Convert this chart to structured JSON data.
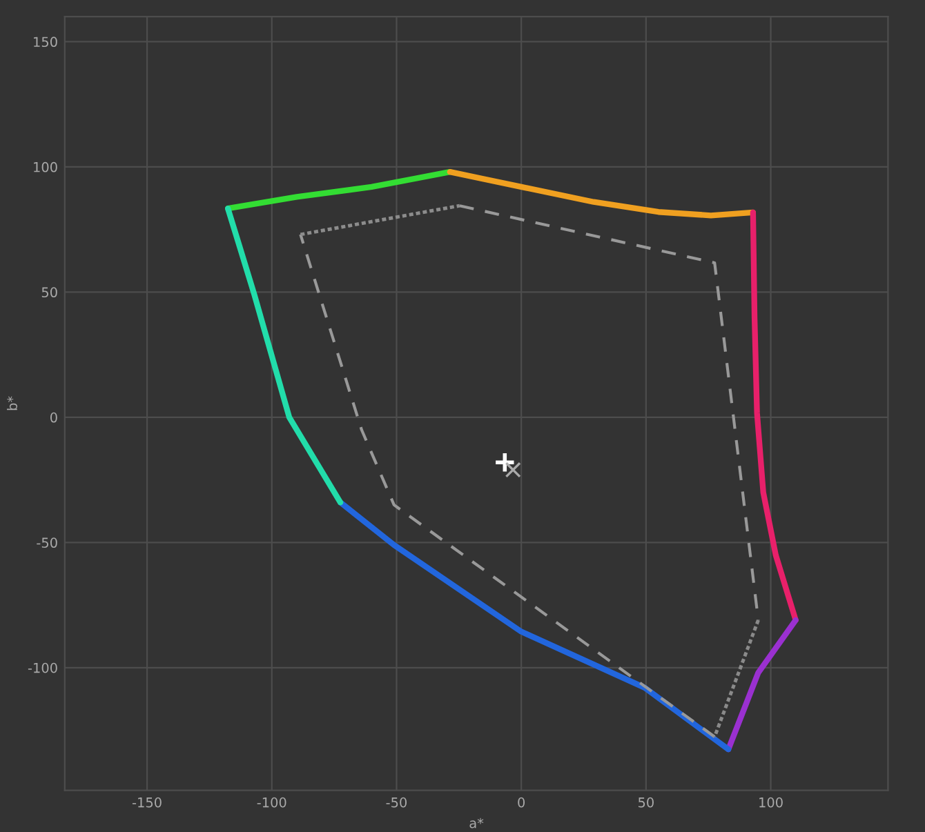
{
  "chart_data": {
    "type": "line",
    "xlabel": "a*",
    "ylabel": "b*",
    "xlim": [
      -183,
      147
    ],
    "ylim": [
      -149,
      160
    ],
    "xticks": [
      -150,
      -100,
      -50,
      0,
      50,
      100
    ],
    "yticks": [
      -100,
      -50,
      0,
      50,
      100,
      150
    ],
    "grid": true,
    "series": [
      {
        "color": "#33dd33",
        "x": [
          -117.6,
          -90,
          -60,
          -28.6
        ],
        "values": [
          83.4,
          88,
          92,
          98
        ],
        "line_style": "solid"
      },
      {
        "color": "#f0a020",
        "x": [
          -28.6,
          0,
          29,
          55,
          76,
          92.9
        ],
        "values": [
          98,
          92,
          86,
          82,
          80.6,
          81.8
        ],
        "line_style": "solid"
      },
      {
        "color": "#e8206a",
        "x": [
          92.9,
          93.5,
          94.5,
          97,
          102,
          110
        ],
        "values": [
          81.8,
          40,
          1.7,
          -30,
          -55,
          -81
        ],
        "line_style": "solid"
      },
      {
        "color": "#9a30d0",
        "x": [
          110,
          95,
          83
        ],
        "values": [
          -81,
          -102,
          -132.6
        ],
        "line_style": "solid"
      },
      {
        "color": "#2266dd",
        "x": [
          83,
          49.5,
          0,
          -51,
          -72.5
        ],
        "values": [
          -132.6,
          -108,
          -85.6,
          -51,
          -34
        ],
        "line_style": "solid"
      },
      {
        "color": "#22ddaa",
        "x": [
          -72.5,
          -93,
          -107,
          -113,
          -117.6
        ],
        "values": [
          -34,
          0,
          49,
          68.5,
          83.4
        ],
        "line_style": "solid"
      },
      {
        "color": "#999999",
        "x": [
          -24.7,
          77.5,
          95,
          null,
          77.5,
          -51,
          -64,
          -88.5
        ],
        "values": [
          84.5,
          61.7,
          -81,
          null,
          -127.6,
          -35,
          -5,
          73
        ],
        "line_style": "dashed"
      },
      {
        "color": "#8c8c8c",
        "x": [
          -88.5,
          -24.7
        ],
        "values": [
          73,
          84.5
        ],
        "line_style": "dotted"
      },
      {
        "color": "#8a8a8a",
        "x": [
          95,
          77.5
        ],
        "values": [
          -81,
          -127.6
        ],
        "line_style": "dotted"
      },
      {
        "type": "scatter",
        "color": "#ffffff",
        "x": [
          -6.6
        ],
        "values": [
          -18
        ],
        "marker": "plus"
      },
      {
        "type": "scatter",
        "color": "#aaaaaa",
        "x": [
          -3.3
        ],
        "values": [
          -21
        ],
        "marker": "cross"
      }
    ]
  }
}
